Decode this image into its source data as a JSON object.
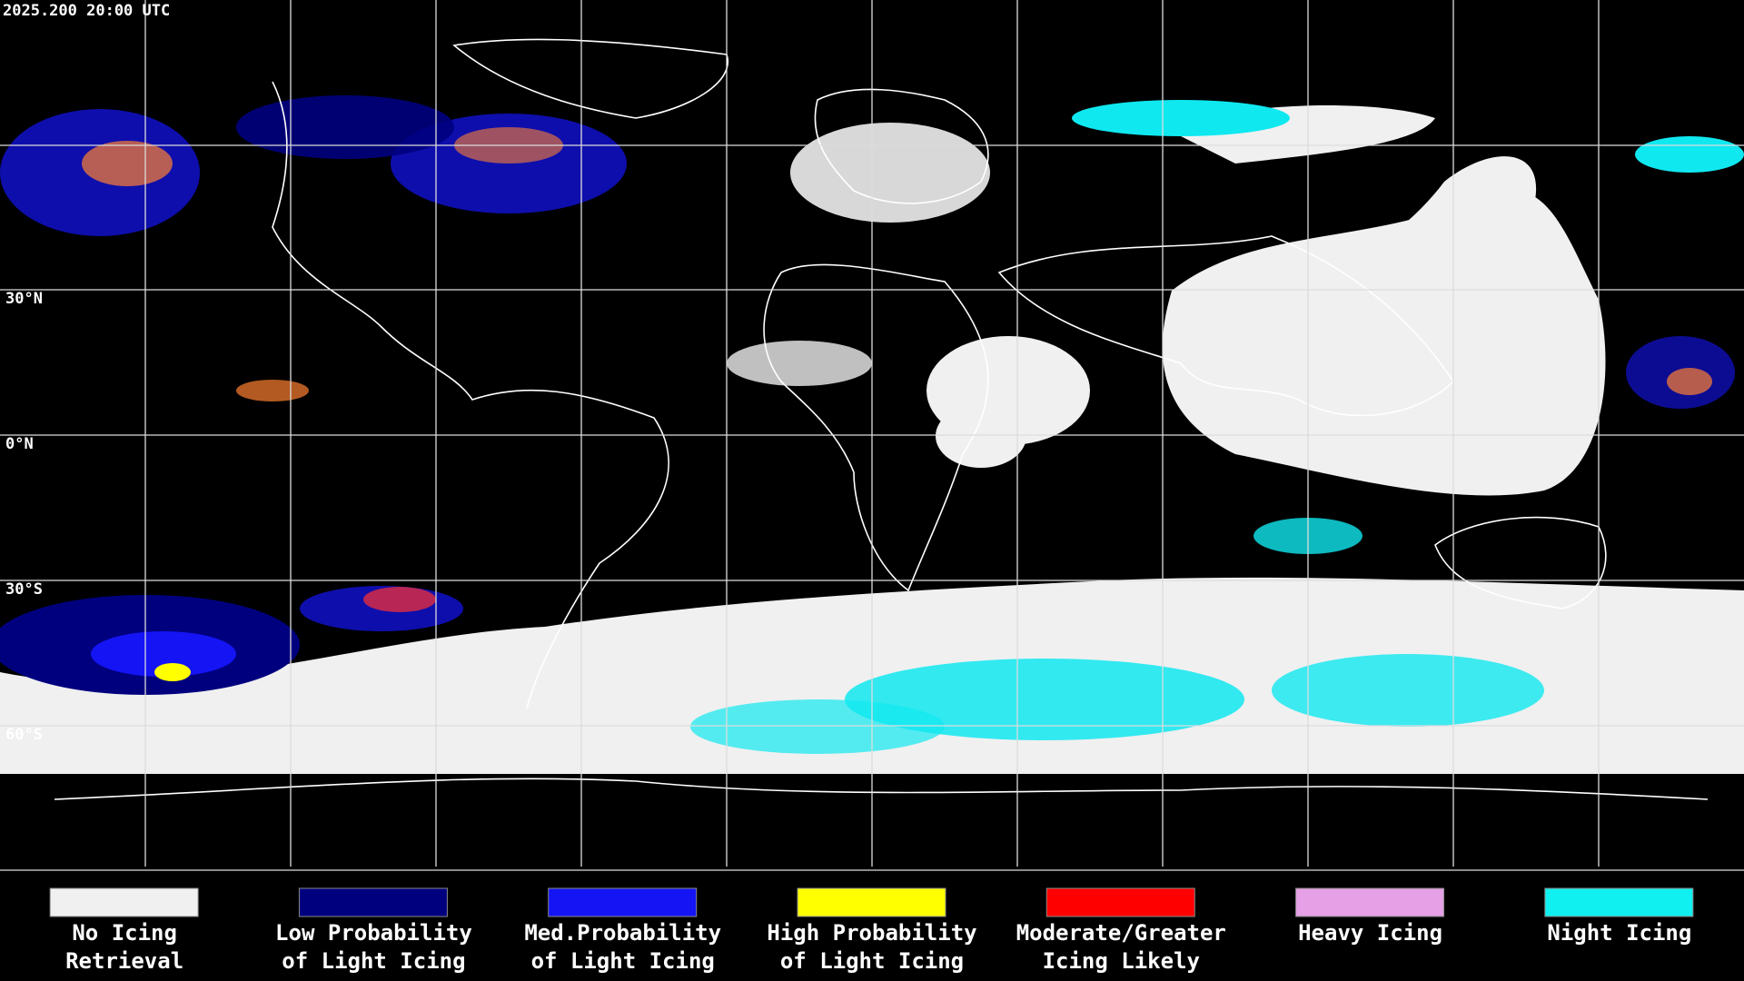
{
  "timestamp": "2025.200 20:00 UTC",
  "latitude_labels": [
    "30°N",
    "0°N",
    "30°S",
    "60°S"
  ],
  "legend": [
    {
      "label": [
        "No Icing",
        "Retrieval"
      ],
      "color": "#f0f0f0"
    },
    {
      "label": [
        "Low Probability",
        "of Light Icing"
      ],
      "color": "#00007f"
    },
    {
      "label": [
        "Med.Probability",
        "of Light Icing"
      ],
      "color": "#1414f5"
    },
    {
      "label": [
        "High Probability",
        "of Light Icing"
      ],
      "color": "#ffff00"
    },
    {
      "label": [
        "Moderate/Greater",
        "Icing Likely"
      ],
      "color": "#ff0000"
    },
    {
      "label": [
        "Heavy Icing"
      ],
      "color": "#e6a0e6"
    },
    {
      "label": [
        "Night Icing"
      ],
      "color": "#10f0f0"
    }
  ]
}
